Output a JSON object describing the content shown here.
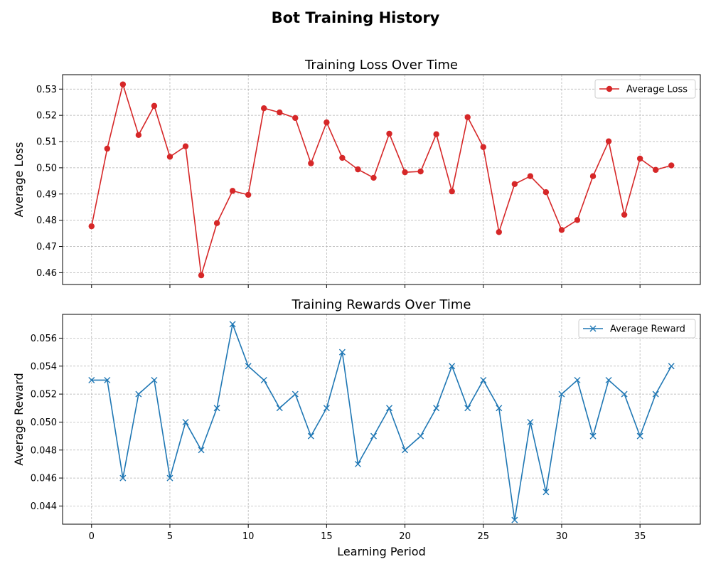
{
  "figure": {
    "title": "Bot Training History"
  },
  "colors": {
    "loss_line": "#d62728",
    "reward_line": "#1f77b4",
    "grid": "#b0b0b0",
    "axis": "#000000",
    "background": "#ffffff"
  },
  "chart_data": [
    {
      "type": "line",
      "title": "Training Loss Over Time",
      "xlabel": "",
      "ylabel": "Average Loss",
      "marker": "circle",
      "grid": true,
      "legend_position": "top-right",
      "xlim": [
        -1.85,
        38.85
      ],
      "ylim": [
        0.4555,
        0.5355
      ],
      "xticks": [
        0,
        5,
        10,
        15,
        20,
        25,
        30,
        35
      ],
      "xtick_labels_visible": false,
      "yticks": [
        0.46,
        0.47,
        0.48,
        0.49,
        0.5,
        0.51,
        0.52,
        0.53
      ],
      "ytick_labels": [
        "0.46",
        "0.47",
        "0.48",
        "0.49",
        "0.50",
        "0.51",
        "0.52",
        "0.53"
      ],
      "x": [
        0,
        1,
        2,
        3,
        4,
        5,
        6,
        7,
        8,
        9,
        10,
        11,
        12,
        13,
        14,
        15,
        16,
        17,
        18,
        19,
        20,
        21,
        22,
        23,
        24,
        25,
        26,
        27,
        28,
        29,
        30,
        31,
        32,
        33,
        34,
        35,
        36,
        37
      ],
      "series": [
        {
          "name": "Average Loss",
          "values": [
            0.4777,
            0.5073,
            0.5318,
            0.5125,
            0.5236,
            0.5042,
            0.5082,
            0.459,
            0.4789,
            0.4912,
            0.4897,
            0.5227,
            0.5211,
            0.519,
            0.5017,
            0.5173,
            0.5038,
            0.4994,
            0.4962,
            0.513,
            0.4983,
            0.4986,
            0.5128,
            0.491,
            0.5193,
            0.5079,
            0.4755,
            0.4938,
            0.4968,
            0.4907,
            0.4763,
            0.4801,
            0.4968,
            0.5101,
            0.4821,
            0.5035,
            0.4992,
            0.5009
          ]
        }
      ]
    },
    {
      "type": "line",
      "title": "Training Rewards Over Time",
      "xlabel": "Learning Period",
      "ylabel": "Average Reward",
      "marker": "x",
      "grid": true,
      "legend_position": "top-right",
      "xlim": [
        -1.85,
        38.85
      ],
      "ylim": [
        0.0427,
        0.0577
      ],
      "xticks": [
        0,
        5,
        10,
        15,
        20,
        25,
        30,
        35
      ],
      "xtick_labels": [
        "0",
        "5",
        "10",
        "15",
        "20",
        "25",
        "30",
        "35"
      ],
      "yticks": [
        0.044,
        0.046,
        0.048,
        0.05,
        0.052,
        0.054,
        0.056
      ],
      "ytick_labels": [
        "0.044",
        "0.046",
        "0.048",
        "0.050",
        "0.052",
        "0.054",
        "0.056"
      ],
      "x": [
        0,
        1,
        2,
        3,
        4,
        5,
        6,
        7,
        8,
        9,
        10,
        11,
        12,
        13,
        14,
        15,
        16,
        17,
        18,
        19,
        20,
        21,
        22,
        23,
        24,
        25,
        26,
        27,
        28,
        29,
        30,
        31,
        32,
        33,
        34,
        35,
        36,
        37
      ],
      "series": [
        {
          "name": "Average Reward",
          "values": [
            0.053,
            0.053,
            0.046,
            0.052,
            0.053,
            0.046,
            0.05,
            0.048,
            0.051,
            0.057,
            0.054,
            0.053,
            0.051,
            0.052,
            0.049,
            0.051,
            0.055,
            0.047,
            0.049,
            0.051,
            0.048,
            0.049,
            0.051,
            0.054,
            0.051,
            0.053,
            0.051,
            0.043,
            0.05,
            0.045,
            0.052,
            0.053,
            0.049,
            0.053,
            0.052,
            0.049,
            0.052,
            0.054
          ]
        }
      ]
    }
  ]
}
